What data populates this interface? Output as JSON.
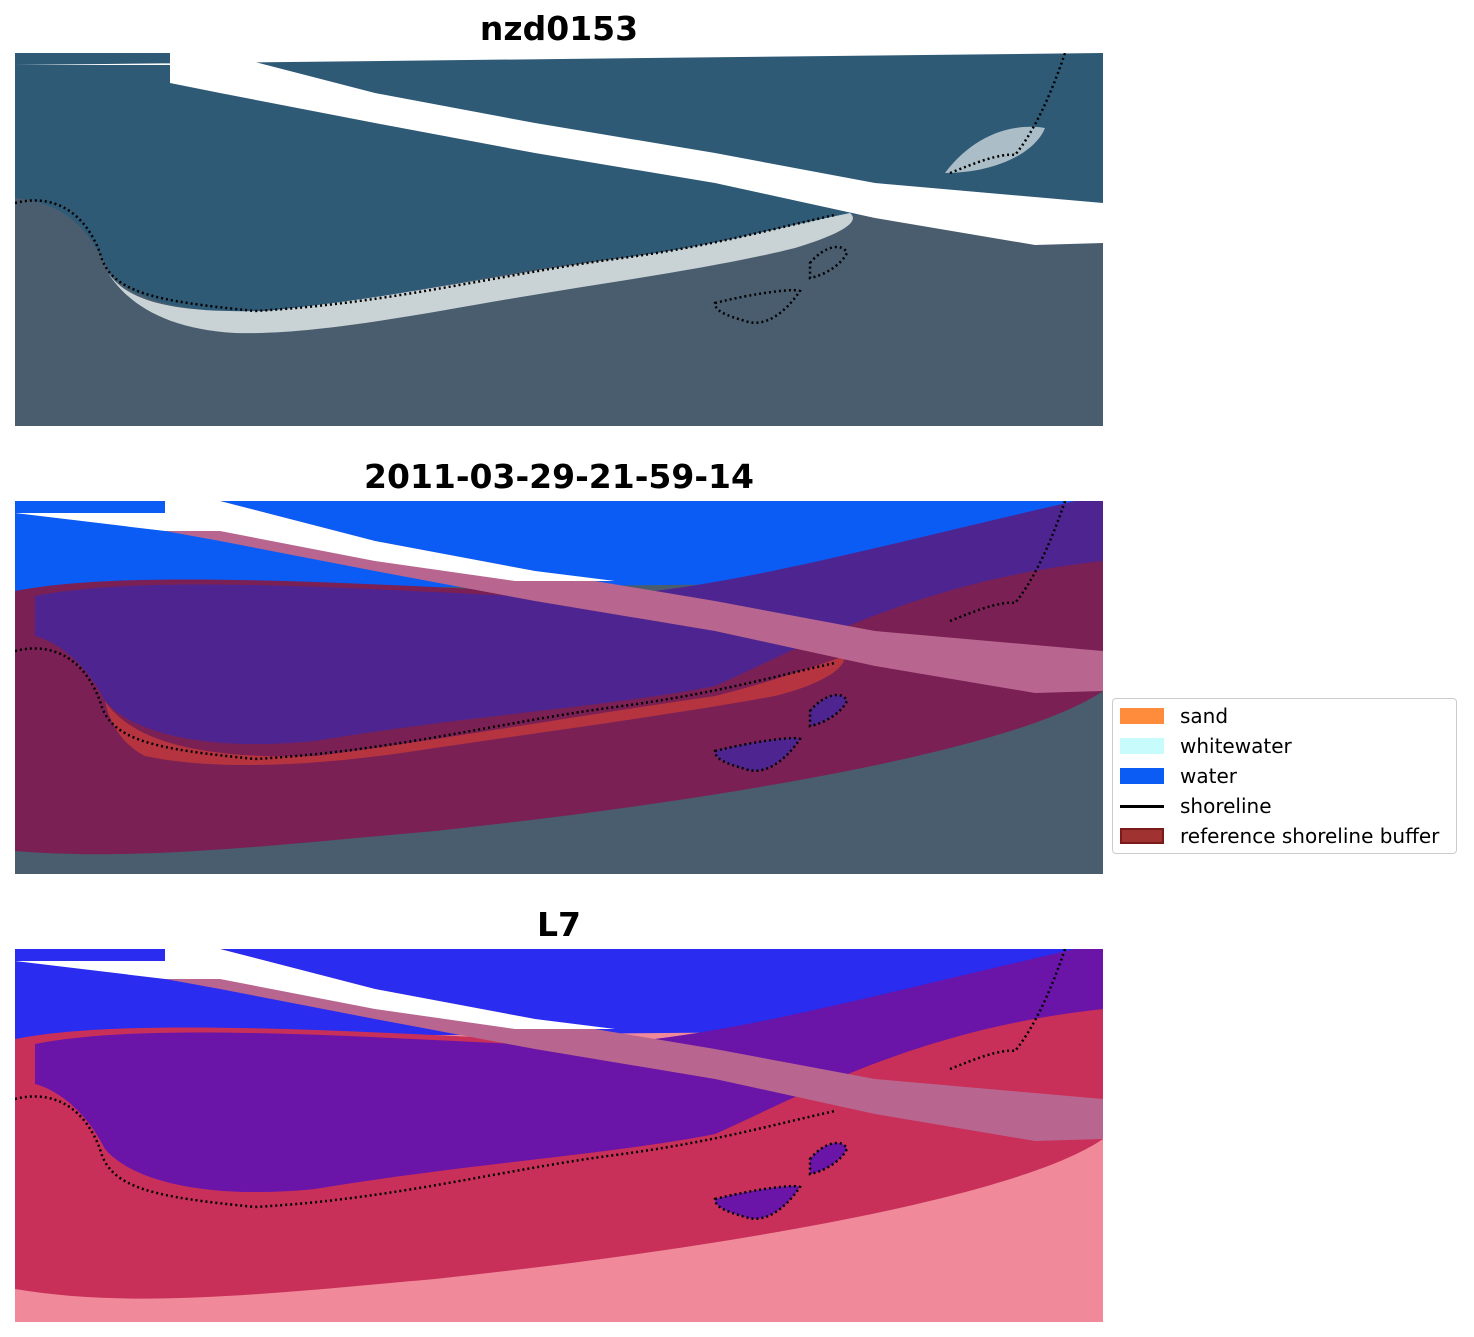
{
  "panels": [
    {
      "title": "nzd0153",
      "kind": "rgb"
    },
    {
      "title": "2011-03-29-21-59-14",
      "kind": "classified"
    },
    {
      "title": "L7",
      "kind": "index"
    }
  ],
  "legend": [
    {
      "label": "sand",
      "color": "#ff8c3c",
      "kind": "patch"
    },
    {
      "label": "whitewater",
      "color": "#c8fcfc",
      "kind": "patch"
    },
    {
      "label": "water",
      "color": "#0a5cf5",
      "kind": "patch"
    },
    {
      "label": "shoreline",
      "color": "#000000",
      "kind": "line"
    },
    {
      "label": "reference shoreline buffer",
      "color": "#a03232",
      "kind": "patch-edged"
    }
  ],
  "colors": {
    "ocean": "#2f5a76",
    "land": "#4a5d6f",
    "beach": "#dfe7e8",
    "cloud_stripe": "#ffffff",
    "water_class": "#0a5cf5",
    "buffer_purple": "#4e2590",
    "buffer_land": "#7a2055",
    "pink_stripe": "#b8668f",
    "sand_red": "#c43a3a",
    "index_blue": "#2a2cf0",
    "index_purple": "#6a14a8",
    "index_red": "#c8305a",
    "index_light": "#f08a9a"
  }
}
